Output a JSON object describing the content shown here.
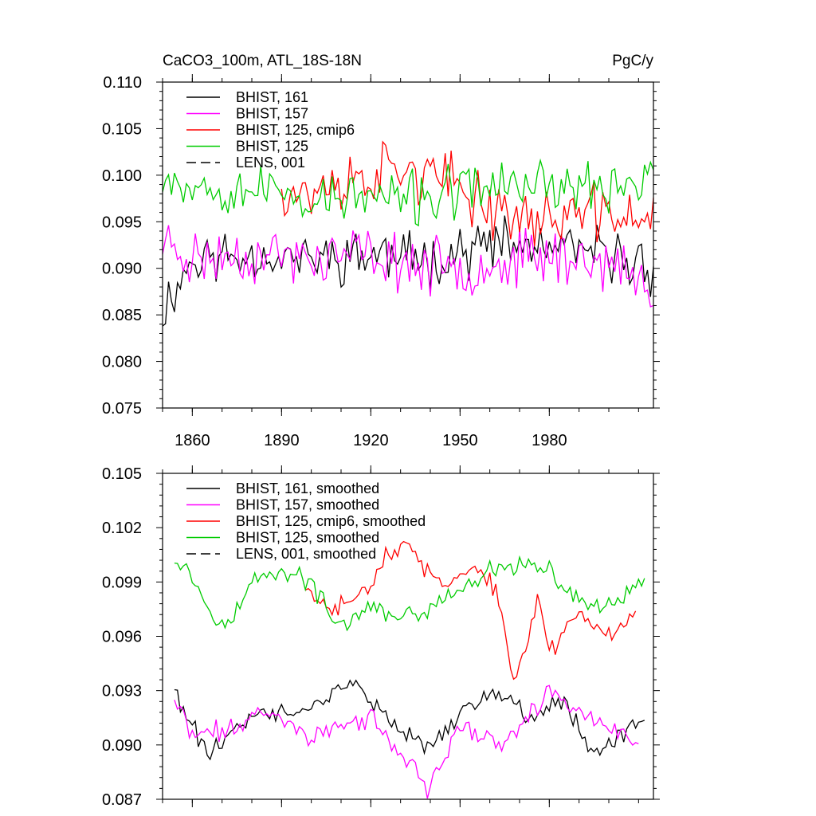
{
  "chart_data": [
    {
      "type": "line",
      "title_left": "CaCO3_100m, ATL_18S-18N",
      "title_right": "PgC/y",
      "xlim": [
        1850,
        2015
      ],
      "ylim": [
        0.075,
        0.11
      ],
      "y_ticks": [
        "0.075",
        "0.080",
        "0.085",
        "0.090",
        "0.095",
        "0.100",
        "0.105",
        "0.110"
      ],
      "x_ticks": [
        "1860",
        "1890",
        "1920",
        "1950",
        "1980"
      ],
      "show_x_tick_labels": true,
      "legend": [
        {
          "label": "BHIST, 161",
          "color": "#000000",
          "dash": "solid"
        },
        {
          "label": "BHIST, 157",
          "color": "#ff00ff",
          "dash": "solid"
        },
        {
          "label": "BHIST, 125, cmip6",
          "color": "#ff0000",
          "dash": "solid"
        },
        {
          "label": "BHIST, 125",
          "color": "#00cc00",
          "dash": "solid"
        },
        {
          "label": "LENS, 001",
          "color": "#000000",
          "dash": "dashed"
        }
      ],
      "series": [
        {
          "name": "BHIST, 161",
          "color": "#000000",
          "start": 1850,
          "noise": 0.0035,
          "seed": 11,
          "anchors": [
            [
              1850,
              0.0855
            ],
            [
              1860,
              0.091
            ],
            [
              1880,
              0.0915
            ],
            [
              1900,
              0.091
            ],
            [
              1920,
              0.0915
            ],
            [
              1940,
              0.091
            ],
            [
              1960,
              0.0925
            ],
            [
              1980,
              0.092
            ],
            [
              2000,
              0.0915
            ],
            [
              2015,
              0.09
            ]
          ]
        },
        {
          "name": "BHIST, 157",
          "color": "#ff00ff",
          "start": 1850,
          "noise": 0.0038,
          "seed": 23,
          "anchors": [
            [
              1850,
              0.093
            ],
            [
              1860,
              0.091
            ],
            [
              1880,
              0.0915
            ],
            [
              1900,
              0.091
            ],
            [
              1920,
              0.0915
            ],
            [
              1940,
              0.09
            ],
            [
              1960,
              0.0905
            ],
            [
              1980,
              0.0915
            ],
            [
              2000,
              0.0905
            ],
            [
              2012,
              0.088
            ]
          ]
        },
        {
          "name": "BHIST, 125, cmip6",
          "color": "#ff0000",
          "start": 1890,
          "noise": 0.004,
          "seed": 37,
          "anchors": [
            [
              1890,
              0.099
            ],
            [
              1900,
              0.098
            ],
            [
              1920,
              0.1
            ],
            [
              1930,
              0.101
            ],
            [
              1950,
              0.0985
            ],
            [
              1965,
              0.096
            ],
            [
              1975,
              0.095
            ],
            [
              1985,
              0.096
            ],
            [
              2005,
              0.0955
            ]
          ]
        },
        {
          "name": "BHIST, 125",
          "color": "#00cc00",
          "start": 1850,
          "noise": 0.0035,
          "seed": 53,
          "anchors": [
            [
              1850,
              0.1005
            ],
            [
              1860,
              0.099
            ],
            [
              1880,
              0.0985
            ],
            [
              1900,
              0.0975
            ],
            [
              1920,
              0.0975
            ],
            [
              1940,
              0.0975
            ],
            [
              1960,
              0.099
            ],
            [
              1980,
              0.099
            ],
            [
              2000,
              0.0985
            ],
            [
              2015,
              0.1005
            ]
          ]
        }
      ]
    },
    {
      "type": "line",
      "xlim": [
        1850,
        2015
      ],
      "ylim": [
        0.087,
        0.105
      ],
      "y_ticks": [
        "0.087",
        "0.090",
        "0.093",
        "0.096",
        "0.099",
        "0.102",
        "0.105"
      ],
      "x_ticks": [
        "1860",
        "1890",
        "1920",
        "1950",
        "1980"
      ],
      "show_x_tick_labels": false,
      "legend": [
        {
          "label": "BHIST, 161, smoothed",
          "color": "#000000",
          "dash": "solid"
        },
        {
          "label": "BHIST, 157, smoothed",
          "color": "#ff00ff",
          "dash": "solid"
        },
        {
          "label": "BHIST, 125, cmip6, smoothed",
          "color": "#ff0000",
          "dash": "solid"
        },
        {
          "label": "BHIST, 125, smoothed",
          "color": "#00cc00",
          "dash": "solid"
        },
        {
          "label": "LENS, 001, smoothed",
          "color": "#000000",
          "dash": "dashed"
        }
      ],
      "series": [
        {
          "name": "BHIST, 161, smoothed",
          "color": "#000000",
          "start": 1854,
          "end": 2012,
          "noise": 0.0007,
          "seed": 61,
          "anchors": [
            [
              1854,
              0.093
            ],
            [
              1860,
              0.091
            ],
            [
              1865,
              0.0895
            ],
            [
              1880,
              0.0915
            ],
            [
              1900,
              0.092
            ],
            [
              1915,
              0.0935
            ],
            [
              1930,
              0.0905
            ],
            [
              1940,
              0.09
            ],
            [
              1960,
              0.093
            ],
            [
              1975,
              0.0915
            ],
            [
              1985,
              0.0925
            ],
            [
              1995,
              0.0895
            ],
            [
              2012,
              0.0915
            ]
          ]
        },
        {
          "name": "BHIST, 157, smoothed",
          "color": "#ff00ff",
          "start": 1854,
          "end": 2010,
          "noise": 0.0007,
          "seed": 71,
          "anchors": [
            [
              1854,
              0.0925
            ],
            [
              1860,
              0.0905
            ],
            [
              1875,
              0.091
            ],
            [
              1885,
              0.092
            ],
            [
              1900,
              0.0905
            ],
            [
              1920,
              0.0915
            ],
            [
              1935,
              0.0885
            ],
            [
              1939,
              0.0875
            ],
            [
              1950,
              0.091
            ],
            [
              1965,
              0.09
            ],
            [
              1980,
              0.093
            ],
            [
              1990,
              0.092
            ],
            [
              2000,
              0.091
            ],
            [
              2010,
              0.0898
            ]
          ]
        },
        {
          "name": "BHIST, 125, cmip6, smoothed",
          "color": "#ff0000",
          "start": 1898,
          "end": 2009,
          "noise": 0.0007,
          "seed": 83,
          "anchors": [
            [
              1898,
              0.0985
            ],
            [
              1905,
              0.0975
            ],
            [
              1915,
              0.098
            ],
            [
              1925,
              0.1005
            ],
            [
              1932,
              0.101
            ],
            [
              1945,
              0.0985
            ],
            [
              1955,
              0.1
            ],
            [
              1962,
              0.0985
            ],
            [
              1968,
              0.0935
            ],
            [
              1972,
              0.0955
            ],
            [
              1976,
              0.098
            ],
            [
              1980,
              0.095
            ],
            [
              1990,
              0.0975
            ],
            [
              2000,
              0.096
            ],
            [
              2009,
              0.0975
            ]
          ]
        },
        {
          "name": "BHIST, 125, smoothed",
          "color": "#00cc00",
          "start": 1854,
          "end": 2012,
          "noise": 0.0007,
          "seed": 97,
          "anchors": [
            [
              1854,
              0.1005
            ],
            [
              1858,
              0.1
            ],
            [
              1862,
              0.0985
            ],
            [
              1872,
              0.0965
            ],
            [
              1882,
              0.0995
            ],
            [
              1893,
              0.0995
            ],
            [
              1900,
              0.099
            ],
            [
              1908,
              0.0965
            ],
            [
              1920,
              0.0975
            ],
            [
              1935,
              0.097
            ],
            [
              1950,
              0.0985
            ],
            [
              1960,
              0.0995
            ],
            [
              1970,
              0.1
            ],
            [
              1980,
              0.0995
            ],
            [
              1990,
              0.098
            ],
            [
              2000,
              0.0975
            ],
            [
              2012,
              0.099
            ]
          ]
        }
      ]
    }
  ]
}
